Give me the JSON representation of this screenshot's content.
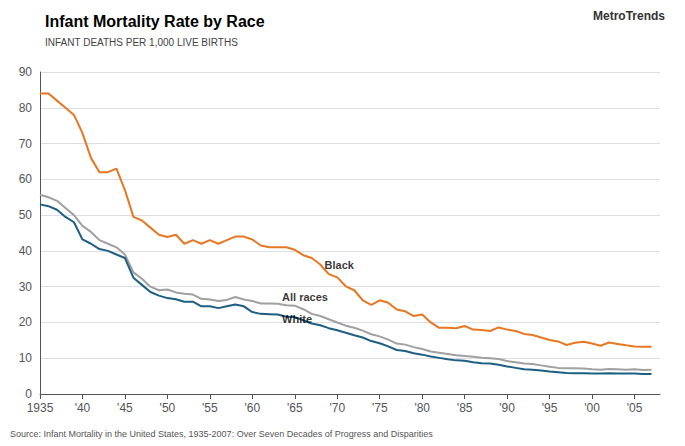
{
  "chart_data": {
    "type": "line",
    "title": "Infant Mortality Rate by Race",
    "subtitle": "INFANT DEATHS PER 1,000 LIVE BIRTHS",
    "source": "Source: Infant Mortality in the United States, 1935-2007: Over Seven Decades of Progress and Disparities",
    "brand": "MetroTrends",
    "x": [
      1935,
      1936,
      1937,
      1938,
      1939,
      1940,
      1941,
      1942,
      1943,
      1944,
      1945,
      1946,
      1947,
      1948,
      1949,
      1950,
      1951,
      1952,
      1953,
      1954,
      1955,
      1956,
      1957,
      1958,
      1959,
      1960,
      1961,
      1962,
      1963,
      1964,
      1965,
      1966,
      1967,
      1968,
      1969,
      1970,
      1971,
      1972,
      1973,
      1974,
      1975,
      1976,
      1977,
      1978,
      1979,
      1980,
      1981,
      1982,
      1983,
      1984,
      1985,
      1986,
      1987,
      1988,
      1989,
      1990,
      1991,
      1992,
      1993,
      1994,
      1995,
      1996,
      1997,
      1998,
      1999,
      2000,
      2001,
      2002,
      2003,
      2004,
      2005,
      2006,
      2007
    ],
    "xlim": [
      1935,
      2008
    ],
    "xticks": [
      1935,
      {
        "value": 1940,
        "label": "'40"
      },
      {
        "value": 1945,
        "label": "'45"
      },
      {
        "value": 1950,
        "label": "'50"
      },
      {
        "value": 1955,
        "label": "'55"
      },
      {
        "value": 1960,
        "label": "'60"
      },
      {
        "value": 1965,
        "label": "'65"
      },
      {
        "value": 1970,
        "label": "'70"
      },
      {
        "value": 1975,
        "label": "'75"
      },
      {
        "value": 1980,
        "label": "'80"
      },
      {
        "value": 1985,
        "label": "'85"
      },
      {
        "value": 1990,
        "label": "'90"
      },
      {
        "value": 1995,
        "label": "'95"
      },
      {
        "value": 2000,
        "label": "'00"
      },
      {
        "value": 2005,
        "label": "'05"
      }
    ],
    "ylim": [
      0,
      90
    ],
    "yticks": [
      0,
      10,
      20,
      30,
      40,
      50,
      60,
      70,
      80,
      90
    ],
    "grid": true,
    "series": [
      {
        "color": "#e87722",
        "values": [
          84.0,
          84.0,
          82.0,
          80.0,
          78.0,
          72.9,
          66.0,
          62.0,
          62.0,
          63.0,
          57.0,
          49.5,
          48.5,
          46.5,
          44.5,
          43.9,
          44.5,
          42.0,
          43.0,
          42.0,
          43.0,
          42.0,
          43.0,
          44.0,
          44.0,
          43.2,
          41.5,
          41.0,
          41.0,
          41.0,
          40.3,
          38.8,
          38.0,
          36.2,
          33.5,
          32.6,
          30.1,
          29.0,
          26.2,
          24.9,
          26.2,
          25.5,
          23.6,
          23.1,
          21.8,
          22.2,
          20.0,
          18.5,
          18.5,
          18.4,
          19.0,
          18.0,
          17.9,
          17.6,
          18.6,
          18.0,
          17.6,
          16.8,
          16.5,
          15.8,
          15.1,
          14.7,
          13.7,
          14.3,
          14.6,
          14.1,
          13.5,
          14.4,
          14.0,
          13.6,
          13.3,
          13.2,
          13.2
        ]
      },
      {
        "color": "#a0a0a0",
        "values": [
          55.7,
          55.0,
          54.0,
          52.0,
          50.0,
          47.0,
          45.3,
          43.0,
          42.0,
          41.0,
          39.0,
          34.0,
          32.2,
          30.0,
          29.0,
          29.2,
          28.4,
          28.0,
          27.8,
          26.6,
          26.4,
          26.0,
          26.3,
          27.1,
          26.4,
          26.0,
          25.3,
          25.3,
          25.2,
          24.8,
          24.7,
          23.7,
          22.4,
          21.8,
          20.9,
          20.0,
          19.1,
          18.5,
          17.7,
          16.7,
          16.1,
          15.2,
          14.1,
          13.8,
          13.1,
          12.6,
          11.9,
          11.5,
          11.2,
          10.8,
          10.6,
          10.4,
          10.1,
          10.0,
          9.8,
          9.2,
          8.9,
          8.5,
          8.4,
          8.0,
          7.6,
          7.3,
          7.2,
          7.2,
          7.1,
          6.9,
          6.8,
          7.0,
          6.9,
          6.8,
          6.9,
          6.7,
          6.8
        ]
      },
      {
        "color": "#1c5f82",
        "values": [
          53.0,
          52.5,
          51.5,
          49.5,
          48.0,
          43.2,
          42.0,
          40.5,
          40.0,
          39.0,
          38.0,
          32.5,
          30.5,
          28.5,
          27.5,
          26.8,
          26.5,
          25.8,
          25.8,
          24.5,
          24.5,
          24.0,
          24.5,
          25.0,
          24.5,
          22.9,
          22.4,
          22.3,
          22.2,
          21.6,
          21.5,
          20.6,
          19.7,
          19.2,
          18.4,
          17.8,
          17.1,
          16.4,
          15.8,
          14.8,
          14.2,
          13.3,
          12.3,
          12.0,
          11.4,
          11.0,
          10.5,
          10.1,
          9.7,
          9.4,
          9.3,
          8.9,
          8.6,
          8.5,
          8.2,
          7.7,
          7.3,
          6.9,
          6.8,
          6.6,
          6.3,
          6.1,
          5.9,
          5.8,
          5.8,
          5.7,
          5.7,
          5.8,
          5.7,
          5.7,
          5.7,
          5.6,
          5.6
        ]
      }
    ],
    "annotations": [
      {
        "text": "Black",
        "x": 1968.5,
        "y": 36.0
      },
      {
        "text": "All races",
        "x": 1963.5,
        "y": 27.0
      },
      {
        "text": "White",
        "x": 1963.5,
        "y": 21.0
      }
    ]
  }
}
